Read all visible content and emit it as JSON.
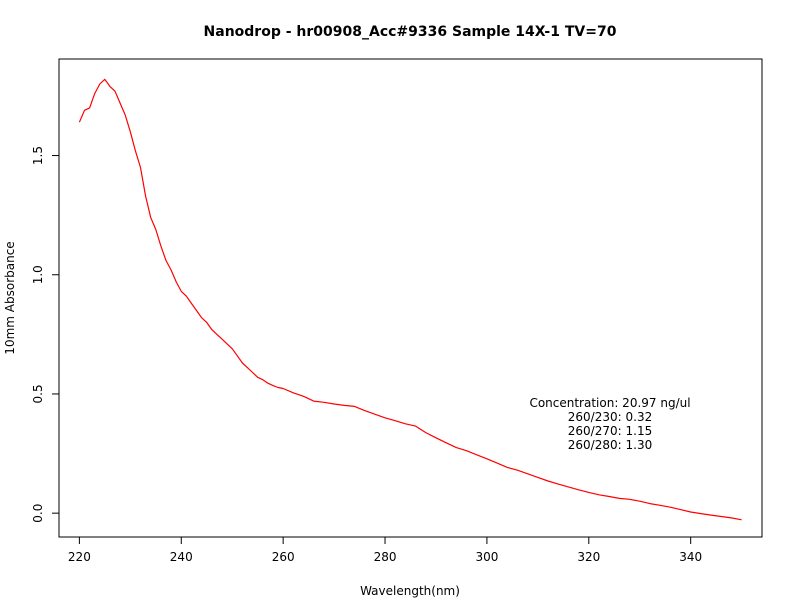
{
  "chart_data": {
    "type": "line",
    "title": "Nanodrop - hr00908_Acc#9336  Sample 14X-1  TV=70",
    "xlabel": "Wavelength(nm)",
    "ylabel": "10mm Absorbance",
    "xlim": [
      216,
      354
    ],
    "ylim": [
      -0.1,
      1.905
    ],
    "xticks": [
      220,
      240,
      260,
      280,
      300,
      320,
      340
    ],
    "yticks": [
      0.0,
      0.5,
      1.0,
      1.5
    ],
    "ytick_labels": [
      "0.0",
      "0.5",
      "1.0",
      "1.5"
    ],
    "grid": false,
    "line_color": "#ff0000",
    "series": [
      {
        "x": [
          220,
          221,
          222,
          223,
          224,
          225,
          226,
          227,
          228,
          229,
          230,
          231,
          232,
          233,
          234,
          235,
          236,
          237,
          238,
          239,
          240,
          241,
          242,
          243,
          244,
          245,
          246,
          247,
          248,
          249,
          250,
          251,
          252,
          253,
          254,
          255,
          256,
          257,
          258,
          259,
          260,
          262,
          264,
          266,
          268,
          270,
          272,
          274,
          276,
          278,
          280,
          282,
          284,
          286,
          288,
          290,
          292,
          294,
          296,
          298,
          300,
          302,
          304,
          306,
          308,
          310,
          312,
          314,
          316,
          318,
          320,
          322,
          324,
          326,
          328,
          330,
          332,
          334,
          336,
          338,
          340,
          342,
          344,
          346,
          348,
          350
        ],
        "y": [
          1.64,
          1.69,
          1.7,
          1.76,
          1.8,
          1.82,
          1.79,
          1.77,
          1.72,
          1.67,
          1.6,
          1.52,
          1.45,
          1.33,
          1.24,
          1.19,
          1.12,
          1.06,
          1.02,
          0.97,
          0.93,
          0.91,
          0.88,
          0.85,
          0.82,
          0.8,
          0.77,
          0.75,
          0.73,
          0.71,
          0.69,
          0.66,
          0.63,
          0.61,
          0.59,
          0.57,
          0.56,
          0.545,
          0.535,
          0.527,
          0.523,
          0.505,
          0.49,
          0.47,
          0.465,
          0.458,
          0.452,
          0.448,
          0.43,
          0.415,
          0.4,
          0.388,
          0.375,
          0.365,
          0.338,
          0.316,
          0.295,
          0.275,
          0.262,
          0.245,
          0.228,
          0.21,
          0.192,
          0.18,
          0.165,
          0.15,
          0.135,
          0.122,
          0.11,
          0.098,
          0.087,
          0.077,
          0.07,
          0.062,
          0.058,
          0.05,
          0.04,
          0.033,
          0.025,
          0.015,
          0.005,
          -0.002,
          -0.008,
          -0.014,
          -0.02,
          -0.028
        ]
      }
    ],
    "annotations": [
      "Concentration: 20.97 ng/ul",
      "260/230: 0.32",
      "260/270: 1.15",
      "260/280: 1.30"
    ]
  }
}
